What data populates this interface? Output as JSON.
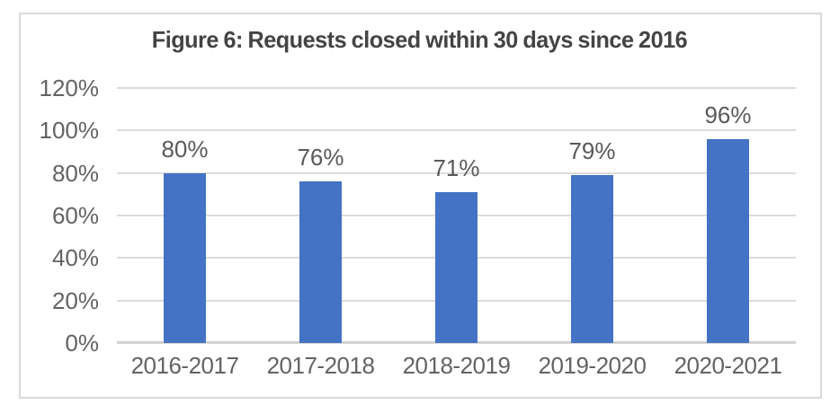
{
  "chart_data": {
    "type": "bar",
    "title": "Figure 6: Requests closed within 30 days since 2016",
    "categories": [
      "2016-2017",
      "2017-2018",
      "2018-2019",
      "2019-2020",
      "2020-2021"
    ],
    "values": [
      80,
      76,
      71,
      79,
      96
    ],
    "data_labels": [
      "80%",
      "76%",
      "71%",
      "79%",
      "96%"
    ],
    "xlabel": "",
    "ylabel": "",
    "ylim": [
      0,
      120
    ],
    "y_tick_step": 20,
    "y_tick_labels": [
      "0%",
      "20%",
      "40%",
      "60%",
      "80%",
      "100%",
      "120%"
    ],
    "grid": true,
    "legend": "none",
    "colors": {
      "bar": "#4472C4",
      "gridline": "#DBDBDB",
      "axis_line": "#D2D2D2",
      "tick_text": "#636363",
      "data_label_text": "#595959",
      "title_text": "#444444",
      "frame_border": "#D9D9D9",
      "background": "#FFFFFF"
    }
  }
}
